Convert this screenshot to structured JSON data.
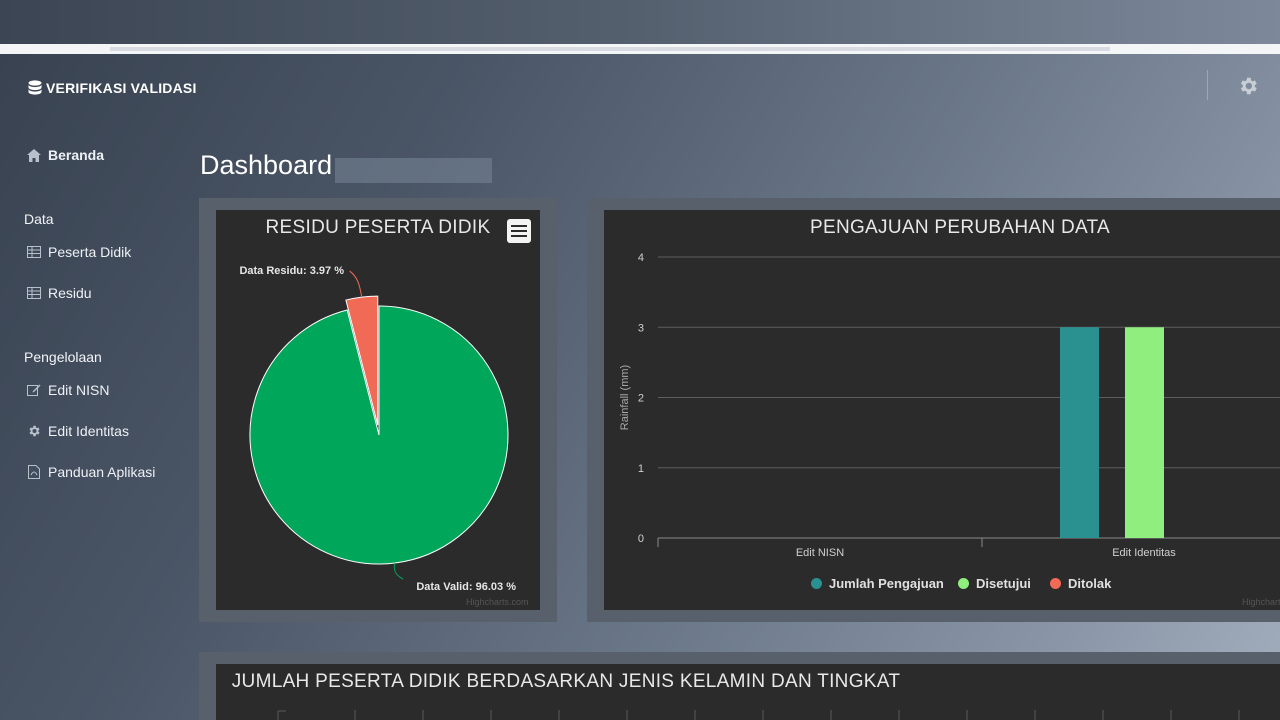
{
  "brand": {
    "title": "VERIFIKASI VALIDASI",
    "icon": "database-icon"
  },
  "sidebar": {
    "beranda": "Beranda",
    "section_data": "Data",
    "peserta_didik": "Peserta Didik",
    "residu": "Residu",
    "section_pengelolaan": "Pengelolaan",
    "edit_nisn": "Edit NISN",
    "edit_identitas": "Edit Identitas",
    "panduan": "Panduan Aplikasi"
  },
  "page": {
    "title": "Dashboard"
  },
  "colors": {
    "green": "#00a65a",
    "red": "#f16a55",
    "teal": "#2a9090",
    "lightgreen": "#90ee7e"
  },
  "chart_data": [
    {
      "type": "pie",
      "title": "RESIDU PESERTA DIDIK",
      "slices": [
        {
          "name": "Data Valid",
          "value": 96.03,
          "label": "Data Valid: 96.03 %",
          "color": "#00a65a"
        },
        {
          "name": "Data Residu",
          "value": 3.97,
          "label": "Data Residu: 3.97 %",
          "color": "#f16a55"
        }
      ],
      "credits": "Highcharts.com"
    },
    {
      "type": "bar",
      "title": "PENGAJUAN PERUBAHAN DATA",
      "ylabel": "Rainfall (mm)",
      "ylim": [
        0,
        4
      ],
      "yticks": [
        "0",
        "1",
        "2",
        "3",
        "4"
      ],
      "categories": [
        "Edit NISN",
        "Edit Identitas"
      ],
      "series": [
        {
          "name": "Jumlah Pengajuan",
          "values": [
            0,
            3
          ],
          "color": "#2a9090"
        },
        {
          "name": "Disetujui",
          "values": [
            0,
            3
          ],
          "color": "#90ee7e"
        },
        {
          "name": "Ditolak",
          "values": [
            0,
            0
          ],
          "color": "#f16a55"
        }
      ],
      "credits": "Highcharts.com"
    },
    {
      "type": "bar",
      "title": "JUMLAH PESERTA DIDIK BERDASARKAN JENIS KELAMIN DAN TINGKAT"
    }
  ]
}
